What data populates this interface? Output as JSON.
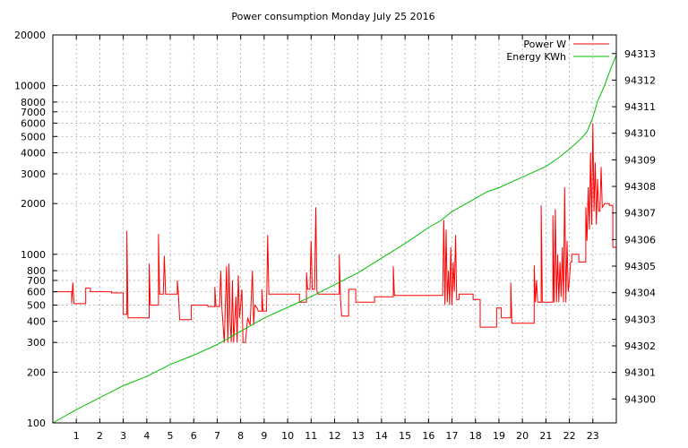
{
  "chart_data": {
    "type": "line",
    "title": "Power consumption Monday July 25 2016",
    "xlabel": "",
    "ylabel": "",
    "y2label": "",
    "x_ticks": [
      "1",
      "2",
      "3",
      "4",
      "5",
      "6",
      "7",
      "8",
      "9",
      "10",
      "11",
      "12",
      "13",
      "14",
      "15",
      "16",
      "17",
      "18",
      "19",
      "20",
      "21",
      "22",
      "23"
    ],
    "xlim": [
      0,
      24
    ],
    "yscale": "log",
    "ylim": [
      100,
      20000
    ],
    "y_ticks": [
      100,
      200,
      300,
      400,
      500,
      600,
      700,
      800,
      1000,
      2000,
      3000,
      4000,
      5000,
      6000,
      7000,
      8000,
      10000,
      20000
    ],
    "y2lim": [
      94299.1,
      94313.7
    ],
    "y2_ticks": [
      94300,
      94301,
      94302,
      94303,
      94304,
      94305,
      94306,
      94307,
      94308,
      94309,
      94310,
      94311,
      94312,
      94313
    ],
    "grid": true,
    "legend_position": "top-right",
    "series": [
      {
        "name": "Power W",
        "axis": "left",
        "color": "#ff0000",
        "points": [
          [
            0,
            600
          ],
          [
            0.8,
            600
          ],
          [
            0.8,
            510
          ],
          [
            0.85,
            680
          ],
          [
            0.9,
            510
          ],
          [
            1.4,
            510
          ],
          [
            1.4,
            630
          ],
          [
            1.6,
            630
          ],
          [
            1.6,
            600
          ],
          [
            2.5,
            600
          ],
          [
            2.5,
            590
          ],
          [
            3.0,
            590
          ],
          [
            3.0,
            440
          ],
          [
            3.15,
            440
          ],
          [
            3.15,
            1380
          ],
          [
            3.2,
            420
          ],
          [
            4.0,
            420
          ],
          [
            4.1,
            420
          ],
          [
            4.1,
            880
          ],
          [
            4.15,
            500
          ],
          [
            4.5,
            500
          ],
          [
            4.5,
            1320
          ],
          [
            4.55,
            580
          ],
          [
            4.7,
            580
          ],
          [
            4.75,
            980
          ],
          [
            4.8,
            580
          ],
          [
            5.3,
            580
          ],
          [
            5.3,
            700
          ],
          [
            5.35,
            580
          ],
          [
            5.4,
            410
          ],
          [
            5.9,
            410
          ],
          [
            5.9,
            500
          ],
          [
            6.6,
            500
          ],
          [
            6.6,
            490
          ],
          [
            6.9,
            490
          ],
          [
            6.9,
            640
          ],
          [
            6.95,
            490
          ],
          [
            7.1,
            490
          ],
          [
            7.15,
            800
          ],
          [
            7.2,
            480
          ],
          [
            7.3,
            300
          ],
          [
            7.4,
            850
          ],
          [
            7.45,
            300
          ],
          [
            7.5,
            880
          ],
          [
            7.55,
            400
          ],
          [
            7.6,
            300
          ],
          [
            7.65,
            700
          ],
          [
            7.7,
            300
          ],
          [
            7.8,
            560
          ],
          [
            7.85,
            300
          ],
          [
            7.9,
            750
          ],
          [
            7.95,
            420
          ],
          [
            8.05,
            620
          ],
          [
            8.1,
            300
          ],
          [
            8.2,
            300
          ],
          [
            8.3,
            420
          ],
          [
            8.4,
            380
          ],
          [
            8.5,
            800
          ],
          [
            8.55,
            380
          ],
          [
            8.6,
            500
          ],
          [
            8.7,
            480
          ],
          [
            8.75,
            460
          ],
          [
            8.9,
            460
          ],
          [
            8.9,
            620
          ],
          [
            8.95,
            460
          ],
          [
            9.1,
            460
          ],
          [
            9.15,
            1300
          ],
          [
            9.2,
            580
          ],
          [
            10.5,
            580
          ],
          [
            10.5,
            520
          ],
          [
            10.8,
            520
          ],
          [
            10.8,
            780
          ],
          [
            10.85,
            620
          ],
          [
            10.95,
            620
          ],
          [
            11.0,
            1200
          ],
          [
            11.05,
            620
          ],
          [
            11.15,
            620
          ],
          [
            11.2,
            1900
          ],
          [
            11.25,
            600
          ],
          [
            11.3,
            580
          ],
          [
            12.2,
            580
          ],
          [
            12.2,
            1000
          ],
          [
            12.25,
            540
          ],
          [
            12.3,
            430
          ],
          [
            12.6,
            430
          ],
          [
            12.6,
            620
          ],
          [
            12.9,
            620
          ],
          [
            12.9,
            520
          ],
          [
            13.7,
            520
          ],
          [
            13.7,
            560
          ],
          [
            14.5,
            560
          ],
          [
            14.5,
            850
          ],
          [
            14.55,
            570
          ],
          [
            16.6,
            570
          ],
          [
            16.65,
            1600
          ],
          [
            16.7,
            500
          ],
          [
            16.75,
            1400
          ],
          [
            16.8,
            520
          ],
          [
            16.85,
            800
          ],
          [
            16.9,
            500
          ],
          [
            16.95,
            1100
          ],
          [
            17.0,
            500
          ],
          [
            17.05,
            900
          ],
          [
            17.1,
            600
          ],
          [
            17.15,
            1300
          ],
          [
            17.2,
            540
          ],
          [
            17.3,
            540
          ],
          [
            17.3,
            580
          ],
          [
            17.9,
            580
          ],
          [
            17.9,
            540
          ],
          [
            18.2,
            540
          ],
          [
            18.2,
            370
          ],
          [
            18.9,
            370
          ],
          [
            18.9,
            480
          ],
          [
            19.1,
            480
          ],
          [
            19.1,
            420
          ],
          [
            19.5,
            420
          ],
          [
            19.5,
            680
          ],
          [
            19.55,
            390
          ],
          [
            20.5,
            390
          ],
          [
            20.5,
            860
          ],
          [
            20.55,
            520
          ],
          [
            20.6,
            700
          ],
          [
            20.65,
            520
          ],
          [
            20.8,
            520
          ],
          [
            20.8,
            1950
          ],
          [
            20.85,
            520
          ],
          [
            21.3,
            520
          ],
          [
            21.3,
            1700
          ],
          [
            21.35,
            520
          ],
          [
            21.4,
            1850
          ],
          [
            21.45,
            520
          ],
          [
            21.5,
            1000
          ],
          [
            21.55,
            520
          ],
          [
            21.6,
            900
          ],
          [
            21.65,
            560
          ],
          [
            21.7,
            1100
          ],
          [
            21.75,
            520
          ],
          [
            21.8,
            2500
          ],
          [
            21.85,
            520
          ],
          [
            21.9,
            1200
          ],
          [
            21.95,
            600
          ],
          [
            22.0,
            700
          ],
          [
            22.05,
            900
          ],
          [
            22.1,
            900
          ],
          [
            22.1,
            1000
          ],
          [
            22.4,
            1000
          ],
          [
            22.4,
            900
          ],
          [
            22.7,
            900
          ],
          [
            22.7,
            1900
          ],
          [
            22.75,
            1200
          ],
          [
            22.8,
            2500
          ],
          [
            22.85,
            1400
          ],
          [
            22.9,
            4000
          ],
          [
            22.95,
            1500
          ],
          [
            23.0,
            6000
          ],
          [
            23.05,
            1800
          ],
          [
            23.1,
            3500
          ],
          [
            23.15,
            1500
          ],
          [
            23.2,
            2800
          ],
          [
            23.25,
            1800
          ],
          [
            23.3,
            1800
          ],
          [
            23.35,
            3300
          ],
          [
            23.4,
            1900
          ],
          [
            23.5,
            2000
          ],
          [
            23.7,
            2000
          ],
          [
            23.7,
            1950
          ],
          [
            23.85,
            1950
          ],
          [
            23.85,
            1100
          ],
          [
            24.0,
            1100
          ]
        ]
      },
      {
        "name": "Energy KWh",
        "axis": "right",
        "color": "#00c000",
        "points": [
          [
            0,
            94299.1
          ],
          [
            1,
            94299.6
          ],
          [
            2,
            94300.05
          ],
          [
            3,
            94300.5
          ],
          [
            4,
            94300.85
          ],
          [
            5,
            94301.3
          ],
          [
            6,
            94301.65
          ],
          [
            7,
            94302.05
          ],
          [
            8,
            94302.55
          ],
          [
            9,
            94303.05
          ],
          [
            10,
            94303.45
          ],
          [
            11,
            94303.85
          ],
          [
            12,
            94304.3
          ],
          [
            13,
            94304.75
          ],
          [
            14,
            94305.3
          ],
          [
            15,
            94305.85
          ],
          [
            16,
            94306.45
          ],
          [
            16.5,
            94306.7
          ],
          [
            17,
            94307.05
          ],
          [
            17.5,
            94307.3
          ],
          [
            18,
            94307.55
          ],
          [
            18.5,
            94307.8
          ],
          [
            19,
            94307.95
          ],
          [
            19.5,
            94308.15
          ],
          [
            20,
            94308.35
          ],
          [
            20.5,
            94308.55
          ],
          [
            21,
            94308.75
          ],
          [
            21.5,
            94309.05
          ],
          [
            22,
            94309.4
          ],
          [
            22.5,
            94309.8
          ],
          [
            22.75,
            94310.05
          ],
          [
            23,
            94310.6
          ],
          [
            23.2,
            94311.2
          ],
          [
            23.5,
            94311.8
          ],
          [
            23.75,
            94312.4
          ],
          [
            24.0,
            94312.95
          ]
        ]
      }
    ]
  }
}
